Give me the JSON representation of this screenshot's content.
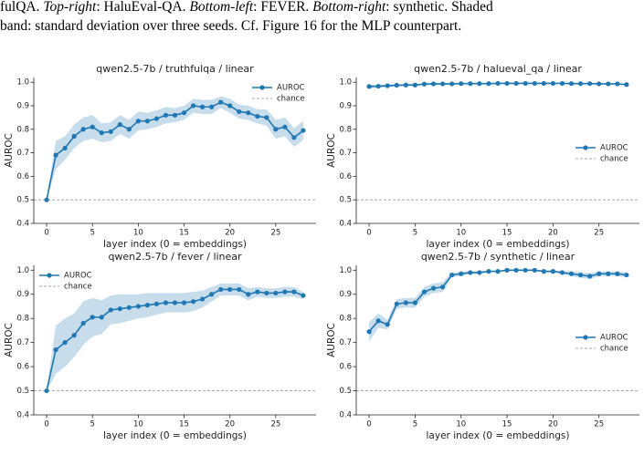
{
  "caption": {
    "lines": [
      [
        {
          "text": "fulQA. "
        },
        {
          "text": "Top-right",
          "italic": true
        },
        {
          "text": ": HaluEval-QA. "
        },
        {
          "text": "Bottom-left",
          "italic": true
        },
        {
          "text": ": FEVER. "
        },
        {
          "text": "Bottom-right",
          "italic": true
        },
        {
          "text": ": synthetic. Shaded"
        }
      ],
      [
        {
          "text": "band: standard deviation over three seeds. Cf. Figure 16 for the MLP counterpart."
        }
      ]
    ]
  },
  "chart_data": [
    {
      "type": "line",
      "title": "qwen2.5-7b / truthfulqa / linear",
      "xlabel": "layer index (0 = embeddings)",
      "ylabel": "AUROC",
      "x": [
        0,
        1,
        2,
        3,
        4,
        5,
        6,
        7,
        8,
        9,
        10,
        11,
        12,
        13,
        14,
        15,
        16,
        17,
        18,
        19,
        20,
        21,
        22,
        23,
        24,
        25,
        26,
        27,
        28
      ],
      "series": [
        {
          "name": "AUROC",
          "color": "#1f77b4",
          "values": [
            0.5,
            0.69,
            0.72,
            0.77,
            0.8,
            0.81,
            0.785,
            0.79,
            0.82,
            0.8,
            0.835,
            0.835,
            0.845,
            0.86,
            0.86,
            0.87,
            0.9,
            0.895,
            0.895,
            0.915,
            0.9,
            0.875,
            0.87,
            0.855,
            0.85,
            0.8,
            0.81,
            0.765,
            0.795
          ],
          "std": [
            0.003,
            0.06,
            0.05,
            0.05,
            0.05,
            0.05,
            0.04,
            0.04,
            0.04,
            0.04,
            0.04,
            0.035,
            0.035,
            0.035,
            0.03,
            0.03,
            0.03,
            0.03,
            0.03,
            0.025,
            0.03,
            0.03,
            0.03,
            0.03,
            0.035,
            0.04,
            0.04,
            0.04,
            0.04
          ]
        }
      ],
      "reference": {
        "name": "chance",
        "value": 0.5,
        "color": "#aaaaaa"
      },
      "legend": "upper right",
      "xlim": [
        -1.4,
        29.4
      ],
      "ylim": [
        0.4,
        1.02
      ],
      "xticks": [
        0,
        5,
        10,
        15,
        20,
        25
      ],
      "yticks": [
        0.4,
        0.5,
        0.6,
        0.7,
        0.8,
        0.9,
        {
          "value": 1,
          "label": "1.0"
        }
      ]
    },
    {
      "type": "line",
      "title": "qwen2.5-7b / halueval_qa / linear",
      "xlabel": "layer index (0 = embeddings)",
      "ylabel": "AUROC",
      "x": [
        0,
        1,
        2,
        3,
        4,
        5,
        6,
        7,
        8,
        9,
        10,
        11,
        12,
        13,
        14,
        15,
        16,
        17,
        18,
        19,
        20,
        21,
        22,
        23,
        24,
        25,
        26,
        27,
        28
      ],
      "series": [
        {
          "name": "AUROC",
          "color": "#1f77b4",
          "values": [
            0.982,
            0.983,
            0.985,
            0.987,
            0.988,
            0.988,
            0.992,
            0.993,
            0.993,
            0.993,
            0.994,
            0.994,
            0.994,
            0.994,
            0.995,
            0.995,
            0.995,
            0.995,
            0.995,
            0.995,
            0.995,
            0.995,
            0.994,
            0.994,
            0.994,
            0.993,
            0.993,
            0.993,
            0.99
          ],
          "std": [
            0.008,
            0.007,
            0.006,
            0.005,
            0.005,
            0.004,
            0.003,
            0.003,
            0.003,
            0.003,
            0.002,
            0.002,
            0.002,
            0.002,
            0.002,
            0.002,
            0.002,
            0.002,
            0.002,
            0.002,
            0.002,
            0.002,
            0.002,
            0.002,
            0.002,
            0.002,
            0.002,
            0.002,
            0.003
          ]
        }
      ],
      "reference": {
        "name": "chance",
        "value": 0.5,
        "color": "#aaaaaa"
      },
      "legend": "center right",
      "xlim": [
        -1.4,
        29.4
      ],
      "ylim": [
        0.4,
        1.02
      ],
      "xticks": [
        0,
        5,
        10,
        15,
        20,
        25
      ],
      "yticks": [
        0.4,
        0.5,
        0.6,
        0.7,
        0.8,
        0.9,
        {
          "value": 1,
          "label": "1.0"
        }
      ]
    },
    {
      "type": "line",
      "title": "qwen2.5-7b / fever / linear",
      "xlabel": "layer index (0 = embeddings)",
      "ylabel": "AUROC",
      "x": [
        0,
        1,
        2,
        3,
        4,
        5,
        6,
        7,
        8,
        9,
        10,
        11,
        12,
        13,
        14,
        15,
        16,
        17,
        18,
        19,
        20,
        21,
        22,
        23,
        24,
        25,
        26,
        27,
        28
      ],
      "series": [
        {
          "name": "AUROC",
          "color": "#1f77b4",
          "values": [
            0.5,
            0.67,
            0.7,
            0.73,
            0.78,
            0.805,
            0.805,
            0.835,
            0.84,
            0.845,
            0.85,
            0.855,
            0.86,
            0.865,
            0.865,
            0.865,
            0.87,
            0.88,
            0.9,
            0.92,
            0.92,
            0.92,
            0.9,
            0.91,
            0.905,
            0.905,
            0.91,
            0.91,
            0.895
          ],
          "std": [
            0.003,
            0.1,
            0.1,
            0.09,
            0.09,
            0.08,
            0.07,
            0.06,
            0.06,
            0.055,
            0.05,
            0.05,
            0.045,
            0.04,
            0.04,
            0.04,
            0.04,
            0.035,
            0.03,
            0.025,
            0.025,
            0.025,
            0.025,
            0.02,
            0.02,
            0.02,
            0.02,
            0.02,
            0.015
          ]
        }
      ],
      "reference": {
        "name": "chance",
        "value": 0.5,
        "color": "#aaaaaa"
      },
      "legend": "upper left",
      "xlim": [
        -1.4,
        29.4
      ],
      "ylim": [
        0.4,
        1.02
      ],
      "xticks": [
        0,
        5,
        10,
        15,
        20,
        25
      ],
      "yticks": [
        0.4,
        0.5,
        0.6,
        0.7,
        0.8,
        0.9,
        {
          "value": 1,
          "label": "1.0"
        }
      ]
    },
    {
      "type": "line",
      "title": "qwen2.5-7b / synthetic / linear",
      "xlabel": "layer index (0 = embeddings)",
      "ylabel": "AUROC",
      "x": [
        0,
        1,
        2,
        3,
        4,
        5,
        6,
        7,
        8,
        9,
        10,
        11,
        12,
        13,
        14,
        15,
        16,
        17,
        18,
        19,
        20,
        21,
        22,
        23,
        24,
        25,
        26,
        27,
        28
      ],
      "series": [
        {
          "name": "AUROC",
          "color": "#1f77b4",
          "values": [
            0.745,
            0.79,
            0.775,
            0.86,
            0.865,
            0.865,
            0.91,
            0.925,
            0.93,
            0.98,
            0.985,
            0.99,
            0.99,
            0.995,
            0.995,
            1.0,
            1.0,
            1.0,
            1.0,
            0.995,
            0.995,
            0.99,
            0.985,
            0.98,
            0.975,
            0.985,
            0.985,
            0.985,
            0.98
          ],
          "std": [
            0.04,
            0.03,
            0.02,
            0.02,
            0.02,
            0.02,
            0.02,
            0.02,
            0.02,
            0.01,
            0.008,
            0.006,
            0.005,
            0.004,
            0.003,
            0.003,
            0.003,
            0.003,
            0.003,
            0.004,
            0.005,
            0.006,
            0.01,
            0.012,
            0.012,
            0.01,
            0.01,
            0.01,
            0.01
          ]
        }
      ],
      "reference": {
        "name": "chance",
        "value": 0.5,
        "color": "#aaaaaa"
      },
      "legend": "center right",
      "xlim": [
        -1.4,
        29.4
      ],
      "ylim": [
        0.4,
        1.02
      ],
      "xticks": [
        0,
        5,
        10,
        15,
        20,
        25
      ],
      "yticks": [
        0.4,
        0.5,
        0.6,
        0.7,
        0.8,
        0.9,
        {
          "value": 1,
          "label": "1.0"
        }
      ]
    }
  ]
}
